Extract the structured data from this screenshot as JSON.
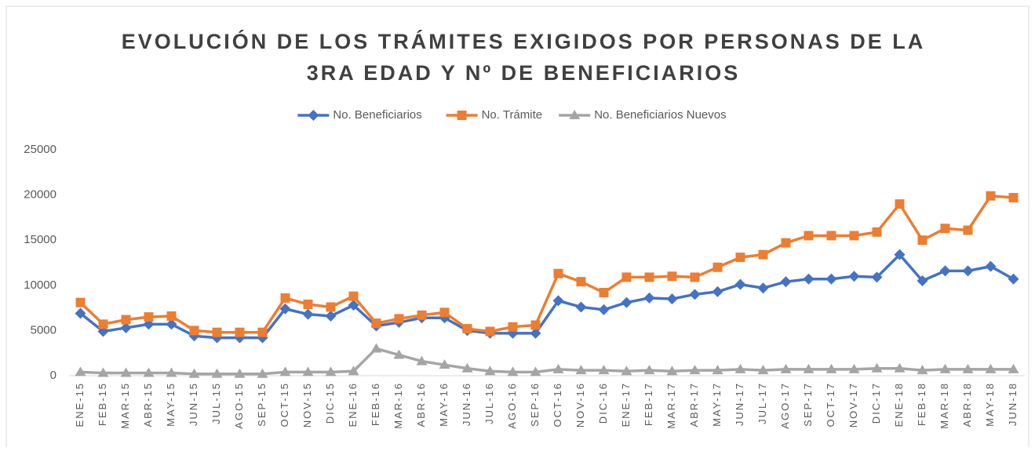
{
  "chart_data": {
    "type": "line",
    "title": [
      "EVOLUCIÓN DE LOS TRÁMITES EXIGIDOS POR PERSONAS DE LA",
      "3RA EDAD Y Nº DE BENEFICIARIOS"
    ],
    "categories": [
      "ENE-15",
      "FEB-15",
      "MAR-15",
      "ABR-15",
      "MAY-15",
      "JUN-15",
      "JUL-15",
      "AGO-15",
      "SEP-15",
      "OCT-15",
      "NOV-15",
      "DIC-15",
      "ENE-16",
      "FEB-16",
      "MAR-16",
      "ABR-16",
      "MAY-16",
      "JUN-16",
      "JUL-16",
      "AGO-16",
      "SEP-16",
      "OCT-16",
      "NOV-16",
      "DIC-16",
      "ENE-17",
      "FEB-17",
      "MAR-17",
      "ABR-17",
      "MAY-17",
      "JUN-17",
      "JUL-17",
      "AGO-17",
      "SEP-17",
      "OCT-17",
      "NOV-17",
      "DIC-17",
      "ENE-18",
      "FEB-18",
      "MAR-18",
      "ABR-18",
      "MAY-18",
      "JUN-18"
    ],
    "series": [
      {
        "name": "No. Beneficiarios",
        "color": "#4472c4",
        "marker": "diamond",
        "values": [
          6900,
          4900,
          5300,
          5700,
          5700,
          4400,
          4200,
          4200,
          4200,
          7400,
          6800,
          6600,
          7800,
          5500,
          5900,
          6400,
          6400,
          5000,
          4700,
          4700,
          4700,
          8300,
          7600,
          7300,
          8100,
          8600,
          8500,
          9000,
          9300,
          10100,
          9700,
          10400,
          10700,
          10700,
          11000,
          10900,
          13400,
          10500,
          11600,
          11600,
          12100,
          10700
        ]
      },
      {
        "name": "No. Trámite",
        "color": "#ed7d31",
        "marker": "square",
        "values": [
          8100,
          5700,
          6200,
          6500,
          6600,
          5000,
          4800,
          4800,
          4800,
          8600,
          7900,
          7600,
          8800,
          5800,
          6300,
          6700,
          7000,
          5200,
          4900,
          5400,
          5600,
          11300,
          10400,
          9200,
          10900,
          10900,
          11000,
          10900,
          12000,
          13100,
          13400,
          14700,
          15500,
          15500,
          15500,
          15900,
          19000,
          15000,
          16300,
          16100,
          19900,
          19700
        ]
      },
      {
        "name": "No. Beneficiarios Nuevos",
        "color": "#a5a5a5",
        "marker": "triangle",
        "values": [
          400,
          300,
          300,
          300,
          300,
          200,
          200,
          200,
          200,
          400,
          400,
          400,
          500,
          3000,
          2300,
          1600,
          1200,
          800,
          500,
          400,
          400,
          700,
          600,
          600,
          500,
          600,
          500,
          600,
          600,
          700,
          600,
          700,
          700,
          700,
          700,
          800,
          800,
          600,
          700,
          700,
          700,
          700
        ]
      }
    ],
    "ylim": [
      0,
      25000
    ],
    "yticks": [
      0,
      5000,
      10000,
      15000,
      20000,
      25000
    ],
    "grid": false,
    "legend": "top"
  }
}
